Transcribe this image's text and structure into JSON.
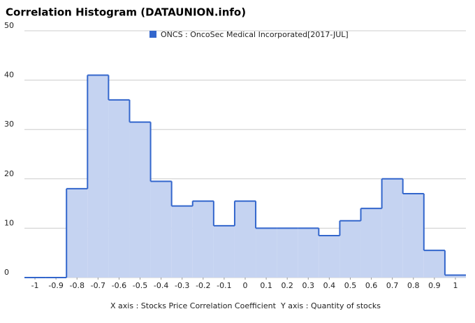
{
  "chart_data": {
    "type": "histogram",
    "title": "Correlation Histogram (DATAUNION.info)",
    "x_label": "X axis : Stocks Price Correlation Coefficient",
    "y_label": "Y axis : Quantity of stocks",
    "series": [
      {
        "name": "ONCS : OncoSec Medical Incorporated[2017-JUL]",
        "color": "#3366cc",
        "fill": "#c5d3f1",
        "values": [
          0,
          0,
          18,
          41,
          36,
          31.5,
          19.5,
          14.5,
          15.5,
          10.5,
          15.5,
          10,
          10,
          10,
          8.5,
          11.5,
          14,
          20,
          17,
          5.5,
          0.5
        ]
      }
    ],
    "bins": [
      -1.05,
      -0.95,
      -0.85,
      -0.75,
      -0.65,
      -0.55,
      -0.45,
      -0.35,
      -0.25,
      -0.15,
      -0.05,
      0.05,
      0.15,
      0.25,
      0.35,
      0.45,
      0.55,
      0.65,
      0.75,
      0.85,
      0.95,
      1.05
    ],
    "xlim": [
      -1.05,
      1.05
    ],
    "xticks": [
      -1,
      -0.9,
      -0.8,
      -0.7,
      -0.6,
      -0.5,
      -0.4,
      -0.3,
      -0.2,
      -0.1,
      0,
      0.1,
      0.2,
      0.3,
      0.4,
      0.5,
      0.6,
      0.7,
      0.8,
      0.9,
      1
    ],
    "ylim": [
      0,
      50
    ],
    "yticks": [
      0,
      10,
      20,
      30,
      40,
      50
    ],
    "grid": true,
    "legend": "top"
  }
}
